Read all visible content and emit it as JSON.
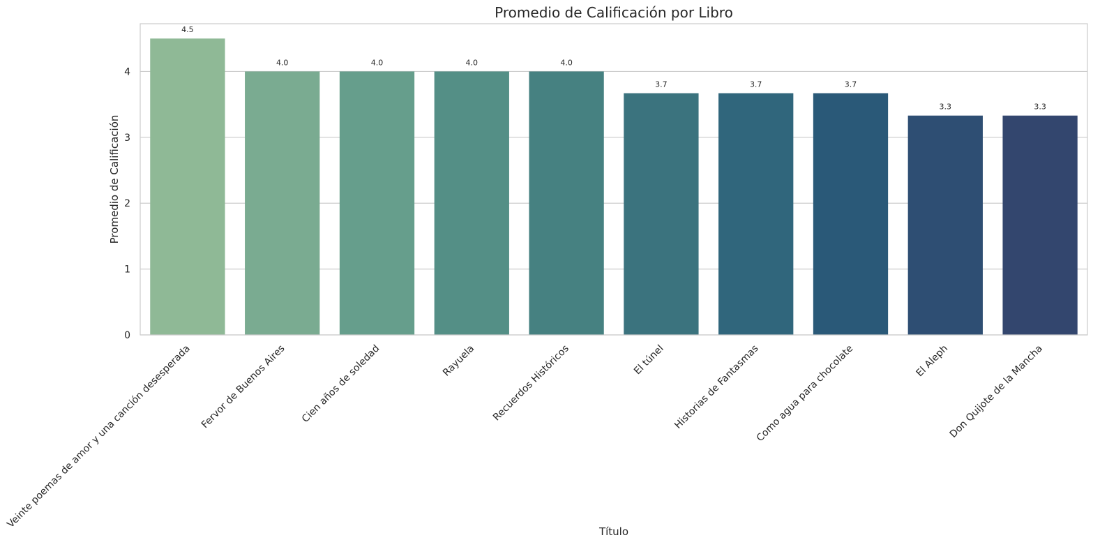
{
  "chart_data": {
    "type": "bar",
    "title": "Promedio de Calificación por Libro",
    "xlabel": "Título",
    "ylabel": "Promedio de Calificación",
    "ylim": [
      0,
      4.725
    ],
    "yticks": [
      0,
      1,
      2,
      3,
      4
    ],
    "grid": "horizontal",
    "categories": [
      "Veinte poemas de amor y una canción desesperada",
      "Fervor de Buenos Aires",
      "Cien años de soledad",
      "Rayuela",
      "Recuerdos Históricos",
      "El túnel",
      "Historias de Fantasmas",
      "Como agua para chocolate",
      "El Aleph",
      "Don Quijote de la Mancha"
    ],
    "values": [
      4.5,
      4.0,
      4.0,
      4.0,
      4.0,
      3.67,
      3.67,
      3.67,
      3.33,
      3.33
    ],
    "value_labels": [
      "4.5",
      "4.0",
      "4.0",
      "4.0",
      "4.0",
      "3.7",
      "3.7",
      "3.7",
      "3.3",
      "3.3"
    ],
    "colors": [
      "#8fb996",
      "#7aab91",
      "#669e8c",
      "#548f86",
      "#468181",
      "#3b737e",
      "#30667c",
      "#2a5978",
      "#2e4e73",
      "#33466e"
    ]
  }
}
